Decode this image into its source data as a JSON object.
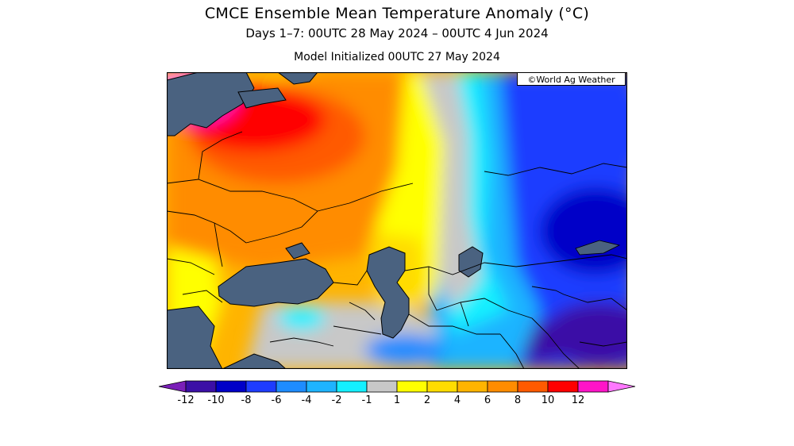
{
  "header": {
    "title": "CMCE Ensemble Mean Temperature Anomaly (°C)",
    "subtitle": "Days 1–7: 00UTC 28 May 2024 – 00UTC 4 Jun 2024",
    "init": "Model Initialized 00UTC 27 May 2024"
  },
  "map": {
    "credit": "©World Ag Weather",
    "water_color": "#4a6280",
    "border_color": "#000000"
  },
  "legend": {
    "bins": [
      {
        "color": "#7a1fb8"
      },
      {
        "color": "#3b0fa6"
      },
      {
        "color": "#0000c8"
      },
      {
        "color": "#1e3cff"
      },
      {
        "color": "#1e8cff"
      },
      {
        "color": "#1eb4ff"
      },
      {
        "color": "#14f0ff"
      },
      {
        "color": "#c8c8c8"
      },
      {
        "color": "#ffff00"
      },
      {
        "color": "#ffdc00"
      },
      {
        "color": "#ffb400"
      },
      {
        "color": "#ff8c00"
      },
      {
        "color": "#ff5a00"
      },
      {
        "color": "#ff0000"
      },
      {
        "color": "#ff14c8"
      },
      {
        "color": "#ff78ff"
      }
    ],
    "ticks": [
      "-12",
      "-10",
      "-8",
      "-6",
      "-4",
      "-2",
      "-1",
      "1",
      "2",
      "4",
      "6",
      "8",
      "10",
      "12"
    ]
  }
}
